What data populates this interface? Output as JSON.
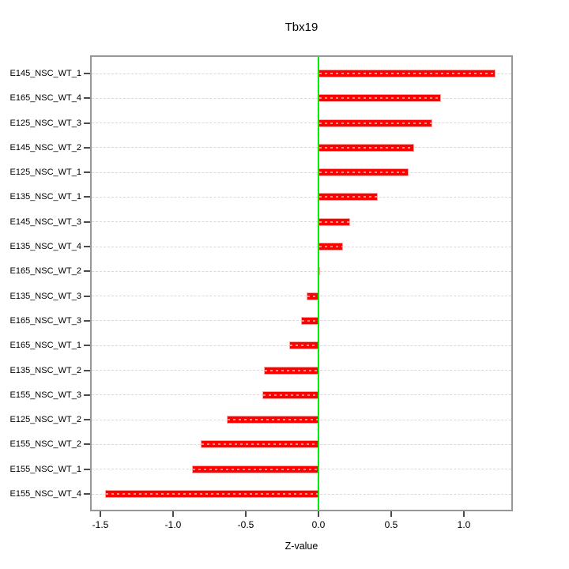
{
  "chart_data": {
    "type": "bar",
    "orientation": "horizontal",
    "title": "Tbx19",
    "xlabel": "Z-value",
    "categories": [
      "E145_NSC_WT_1",
      "E165_NSC_WT_4",
      "E125_NSC_WT_3",
      "E145_NSC_WT_2",
      "E125_NSC_WT_1",
      "E135_NSC_WT_1",
      "E145_NSC_WT_3",
      "E135_NSC_WT_4",
      "E165_NSC_WT_2",
      "E135_NSC_WT_3",
      "E165_NSC_WT_3",
      "E165_NSC_WT_1",
      "E135_NSC_WT_2",
      "E155_NSC_WT_3",
      "E125_NSC_WT_2",
      "E155_NSC_WT_2",
      "E155_NSC_WT_1",
      "E155_NSC_WT_4"
    ],
    "values": [
      1.22,
      0.84,
      0.78,
      0.66,
      0.62,
      0.41,
      0.22,
      0.17,
      0.005,
      -0.08,
      -0.12,
      -0.2,
      -0.377,
      -0.384,
      -0.63,
      -0.81,
      -0.87,
      -1.47
    ],
    "xticks": [
      -1.5,
      -1.0,
      -0.5,
      0.0,
      0.5,
      1.0
    ],
    "xtick_labels": [
      "-1.5",
      "-1.0",
      "-0.5",
      "0.0",
      "0.5",
      "1.0"
    ],
    "xlim": [
      -1.57,
      1.34
    ],
    "grid": true,
    "gridline_style": "dashed",
    "zero_reference_line": 0.0,
    "legend": null,
    "colors": {
      "bar_fill": "#ff0000",
      "bar_border": "#ffa3a3",
      "zero_line": "#00ee00",
      "grid_line": "#d9d9d9",
      "box_border": "#979797",
      "text": "#000000"
    }
  }
}
